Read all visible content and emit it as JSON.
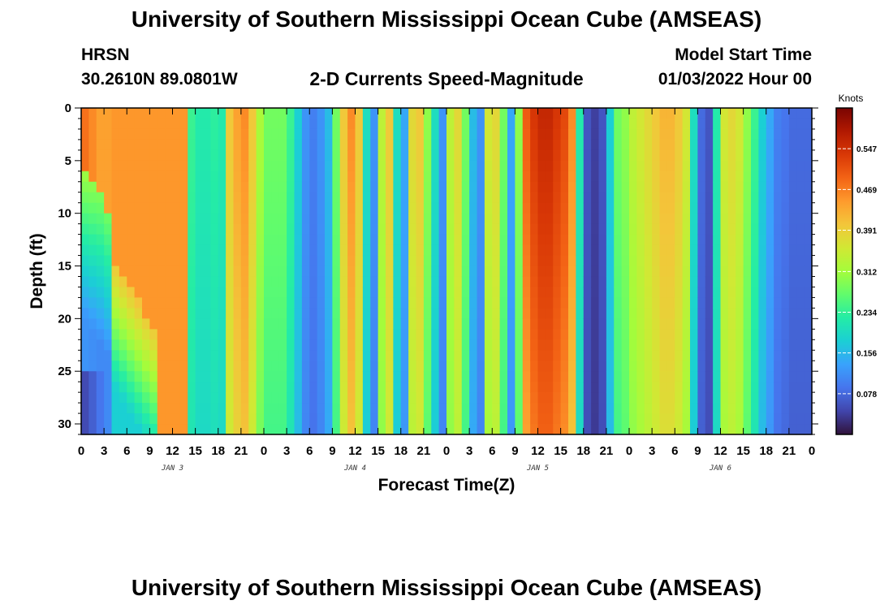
{
  "header": {
    "title": "University of Southern Mississippi Ocean Cube (AMSEAS)",
    "station": "HRSN",
    "location": "30.2610N  89.0801W",
    "plot_title": "2-D Currents Speed-Magnitude",
    "model_label": "Model Start Time",
    "model_time": "01/03/2022 Hour 00"
  },
  "footer": {
    "title": "University of Southern Mississippi Ocean Cube (AMSEAS)"
  },
  "chart_data": {
    "type": "heatmap",
    "title": "2-D Currents Speed-Magnitude",
    "xlabel": "Forecast Time(Z)",
    "ylabel": "Depth (ft)",
    "x_ticks": [
      "0",
      "3",
      "6",
      "9",
      "12",
      "15",
      "18",
      "21",
      "0",
      "3",
      "6",
      "9",
      "12",
      "15",
      "18",
      "21",
      "0",
      "3",
      "6",
      "9",
      "12",
      "15",
      "18",
      "21",
      "0",
      "3",
      "6",
      "9",
      "12",
      "15",
      "18",
      "21",
      "0"
    ],
    "date_labels": [
      {
        "label": "JAN 3",
        "hour": 12
      },
      {
        "label": "JAN 4",
        "hour": 36
      },
      {
        "label": "JAN 5",
        "hour": 60
      },
      {
        "label": "JAN 6",
        "hour": 84
      }
    ],
    "x_range_hours": [
      0,
      96
    ],
    "y_ticks": [
      0,
      5,
      10,
      15,
      20,
      25,
      30
    ],
    "y_range": [
      0,
      31
    ],
    "y_inverted": true,
    "colorbar": {
      "unit": "Knots",
      "ticks": [
        0.547,
        0.469,
        0.391,
        0.312,
        0.234,
        0.156,
        0.078
      ],
      "range": [
        0,
        0.625
      ],
      "colors": [
        "#30123b",
        "#4145ab",
        "#4675ed",
        "#39a2fc",
        "#1bcfd4",
        "#24eca6",
        "#61fc6c",
        "#a4fc3b",
        "#d1e834",
        "#f3c63a",
        "#fe9b2d",
        "#f36315",
        "#d93806",
        "#b11901",
        "#7a0402"
      ]
    },
    "depth_levels": [
      0.5,
      1.5,
      2.5,
      3.5,
      4.5,
      5.5,
      6.5,
      7.5,
      8.5,
      9.5,
      10.5,
      11.5,
      12.5,
      13.5,
      14.5,
      15.5,
      16.5,
      17.5,
      18.5,
      19.5,
      20.5,
      21.5,
      22.5,
      23.5,
      24.5,
      25.5,
      26.5,
      27.5,
      28.5,
      29.5,
      30.5
    ],
    "hour_values": [
      0,
      1,
      2,
      3,
      4,
      5,
      6,
      7,
      8,
      9,
      10,
      11,
      12,
      13,
      14,
      15,
      16,
      17,
      18,
      19,
      20,
      21,
      22,
      23,
      24,
      25,
      26,
      27,
      28,
      29,
      30,
      31,
      32,
      33,
      34,
      35,
      36,
      37,
      38,
      39,
      40,
      41,
      42,
      43,
      44,
      45,
      46,
      47,
      48,
      49,
      50,
      51,
      52,
      53,
      54,
      55,
      56,
      57,
      58,
      59,
      60,
      61,
      62,
      63,
      64,
      65,
      66,
      67,
      68,
      69,
      70,
      71,
      72,
      73,
      74,
      75,
      76,
      77,
      78,
      79,
      80,
      81,
      82,
      83,
      84,
      85,
      86,
      87,
      88,
      89,
      90,
      91,
      92,
      93,
      94,
      95
    ],
    "surface_speed_knots": [
      0.48,
      0.46,
      0.44,
      0.44,
      0.45,
      0.45,
      0.45,
      0.45,
      0.45,
      0.45,
      0.45,
      0.45,
      0.45,
      0.45,
      0.24,
      0.22,
      0.22,
      0.23,
      0.22,
      0.4,
      0.44,
      0.46,
      0.4,
      0.32,
      0.28,
      0.28,
      0.28,
      0.24,
      0.18,
      0.12,
      0.1,
      0.12,
      0.16,
      0.28,
      0.4,
      0.46,
      0.4,
      0.2,
      0.12,
      0.34,
      0.4,
      0.2,
      0.14,
      0.38,
      0.4,
      0.3,
      0.2,
      0.12,
      0.34,
      0.38,
      0.28,
      0.16,
      0.12,
      0.36,
      0.38,
      0.28,
      0.14,
      0.3,
      0.5,
      0.54,
      0.56,
      0.56,
      0.54,
      0.52,
      0.46,
      0.22,
      0.06,
      0.04,
      0.06,
      0.18,
      0.28,
      0.3,
      0.34,
      0.36,
      0.38,
      0.4,
      0.42,
      0.42,
      0.4,
      0.36,
      0.2,
      0.08,
      0.06,
      0.22,
      0.36,
      0.38,
      0.36,
      0.3,
      0.24,
      0.18,
      0.14,
      0.1,
      0.09,
      0.08,
      0.08,
      0.08
    ]
  }
}
